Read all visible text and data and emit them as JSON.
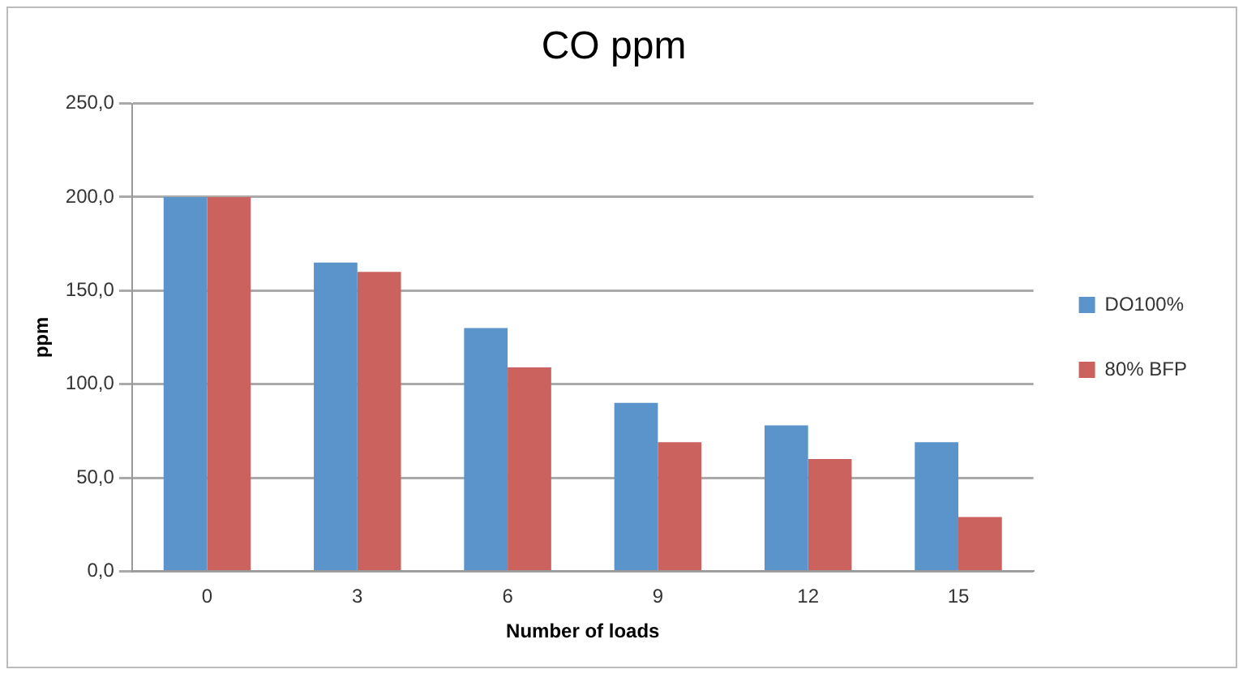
{
  "chart_data": {
    "type": "bar",
    "title": "CO ppm",
    "xlabel": "Number of loads",
    "ylabel": "ppm",
    "categories": [
      "0",
      "3",
      "6",
      "9",
      "12",
      "15"
    ],
    "series": [
      {
        "name": "DO100%",
        "color": "#5b94cb",
        "values": [
          200,
          165,
          130,
          90,
          78,
          69
        ]
      },
      {
        "name": "80% BFP",
        "color": "#cb625d",
        "values": [
          200,
          160,
          109,
          69,
          60,
          29
        ]
      }
    ],
    "ylim": [
      0,
      250
    ],
    "yticks": [
      {
        "value": 0,
        "label": "0,0"
      },
      {
        "value": 50,
        "label": "50,0"
      },
      {
        "value": 100,
        "label": "100,0"
      },
      {
        "value": 150,
        "label": "150,0"
      },
      {
        "value": 200,
        "label": "200,0"
      },
      {
        "value": 250,
        "label": "250,0"
      }
    ],
    "grid": "y",
    "legend": "right"
  }
}
